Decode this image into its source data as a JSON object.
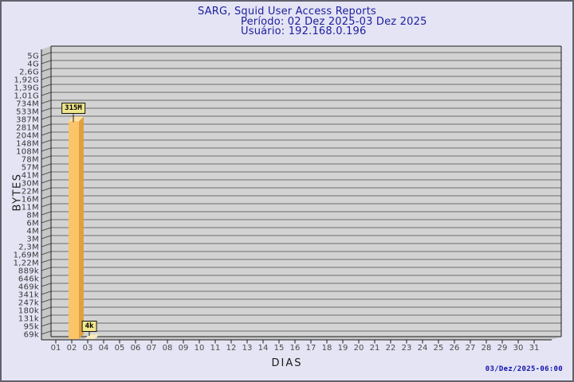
{
  "window": {
    "background": "#e4e4f4",
    "border": "#62626e"
  },
  "header": {
    "title": "SARG, Squid User Access Reports",
    "period": "Período: 02 Dez 2025-03 Dez 2025",
    "user": "Usuário: 192.168.0.196"
  },
  "footer": {
    "timestamp": "03/Dez/2025-06:00"
  },
  "chart_data": {
    "type": "bar",
    "title": "SARG, Squid User Access Reports",
    "subtitle": [
      "Período: 02 Dez 2025-03 Dez 2025",
      "Usuário: 192.168.0.196"
    ],
    "xlabel": "DIAS",
    "ylabel": "BYTES",
    "x_categories": [
      "01",
      "02",
      "03",
      "04",
      "05",
      "06",
      "07",
      "08",
      "09",
      "10",
      "11",
      "12",
      "13",
      "14",
      "15",
      "16",
      "17",
      "18",
      "19",
      "20",
      "21",
      "22",
      "23",
      "24",
      "25",
      "26",
      "27",
      "28",
      "29",
      "30",
      "31"
    ],
    "y_tick_labels": [
      "5G",
      "4G",
      "2,6G",
      "1,92G",
      "1,39G",
      "1,01G",
      "734M",
      "533M",
      "387M",
      "281M",
      "204M",
      "148M",
      "108M",
      "78M",
      "57M",
      "41M",
      "30M",
      "22M",
      "16M",
      "11M",
      "8M",
      "6M",
      "4M",
      "3M",
      "2,3M",
      "1,69M",
      "1,22M",
      "889k",
      "646k",
      "469k",
      "341k",
      "247k",
      "180k",
      "131k",
      "95k",
      "69k"
    ],
    "y_scale": "log",
    "grid": true,
    "legend": false,
    "bars": [
      {
        "day": "02",
        "value_label": "315M",
        "value_bytes": 315000000
      },
      {
        "day": "03",
        "value_label": "4k",
        "value_bytes": 4000
      }
    ]
  },
  "colors": {
    "title_text": "#1d1d9f",
    "timestamp_text": "#1111ad",
    "plot_band": "#d3d3d3",
    "gridline": "#6e6e6e",
    "wall": "#c7c7c7",
    "wall_line": "#565656",
    "axis": "#1c1c1c",
    "y_label": "#383838",
    "x_label": "#4a4a4a",
    "bar_front": "#fcc469",
    "bar_side": "#dfa03f",
    "bar_top": "#ffe2a2",
    "bar_top_flat": "#f5e8be",
    "value_box_bg": "#f0e78e",
    "value_box_border": "#14140a"
  }
}
